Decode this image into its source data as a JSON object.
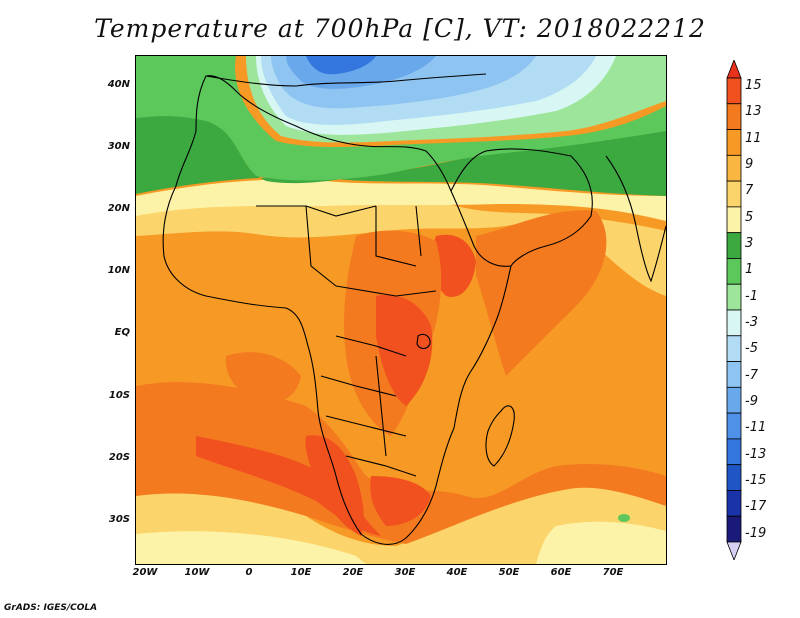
{
  "title": "Temperature at 700hPa [C], VT: 2018022212",
  "credit": "GrADS: IGES/COLA",
  "lat_labels": [
    "40N",
    "30N",
    "20N",
    "10N",
    "EQ",
    "10S",
    "20S",
    "30S"
  ],
  "lon_labels": [
    "20W",
    "10W",
    "0",
    "10E",
    "20E",
    "30E",
    "40E",
    "50E",
    "60E",
    "70E"
  ],
  "colorbar": {
    "labels": [
      "15",
      "13",
      "11",
      "9",
      "7",
      "5",
      "3",
      "1",
      "-1",
      "-3",
      "-5",
      "-7",
      "-9",
      "-11",
      "-13",
      "-15",
      "-17",
      "-19"
    ],
    "colors": [
      "#e8331c",
      "#f0511e",
      "#f47a20",
      "#f79a25",
      "#f9b640",
      "#fbd56b",
      "#fdf3a8",
      "#3ba840",
      "#5cc75a",
      "#9ce59a",
      "#d8f7f4",
      "#b1dcf4",
      "#8ec4f1",
      "#6aa8ec",
      "#4f91e8",
      "#3376de",
      "#1f55c4",
      "#1a33a8",
      "#1a1a78",
      "#d8d0f2"
    ]
  }
}
